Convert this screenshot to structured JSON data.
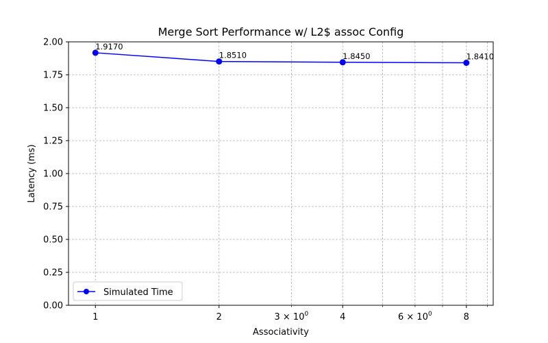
{
  "chart_data": {
    "type": "line",
    "title": "Merge Sort Performance w/ L2$ assoc Config",
    "xlabel": "Associativity",
    "ylabel": "Latency (ms)",
    "xscale": "log",
    "xlim": [
      0.86,
      9.3
    ],
    "ylim": [
      0,
      2.0
    ],
    "grid": true,
    "legend_position": "lower-left",
    "x_ticks": [
      {
        "value": 1,
        "label": "1"
      },
      {
        "value": 2,
        "label": "2"
      },
      {
        "value": 4,
        "label": "4"
      },
      {
        "value": 8,
        "label": "8"
      }
    ],
    "x_minor_ticks": [
      {
        "value": 3,
        "label": "3 × 10^0"
      },
      {
        "value": 5,
        "label": ""
      },
      {
        "value": 6,
        "label": "6 × 10^0"
      },
      {
        "value": 7,
        "label": ""
      },
      {
        "value": 9,
        "label": ""
      }
    ],
    "y_ticks": [
      {
        "value": 0.0,
        "label": "0.00"
      },
      {
        "value": 0.25,
        "label": "0.25"
      },
      {
        "value": 0.5,
        "label": "0.50"
      },
      {
        "value": 0.75,
        "label": "0.75"
      },
      {
        "value": 1.0,
        "label": "1.00"
      },
      {
        "value": 1.25,
        "label": "1.25"
      },
      {
        "value": 1.5,
        "label": "1.50"
      },
      {
        "value": 1.75,
        "label": "1.75"
      },
      {
        "value": 2.0,
        "label": "2.00"
      }
    ],
    "series": [
      {
        "name": "Simulated Time",
        "color": "#0000ff",
        "marker": "circle",
        "x": [
          1,
          2,
          4,
          8
        ],
        "y": [
          1.917,
          1.851,
          1.845,
          1.841
        ],
        "labels": [
          "1.9170",
          "1.8510",
          "1.8450",
          "1.8410"
        ]
      }
    ]
  }
}
